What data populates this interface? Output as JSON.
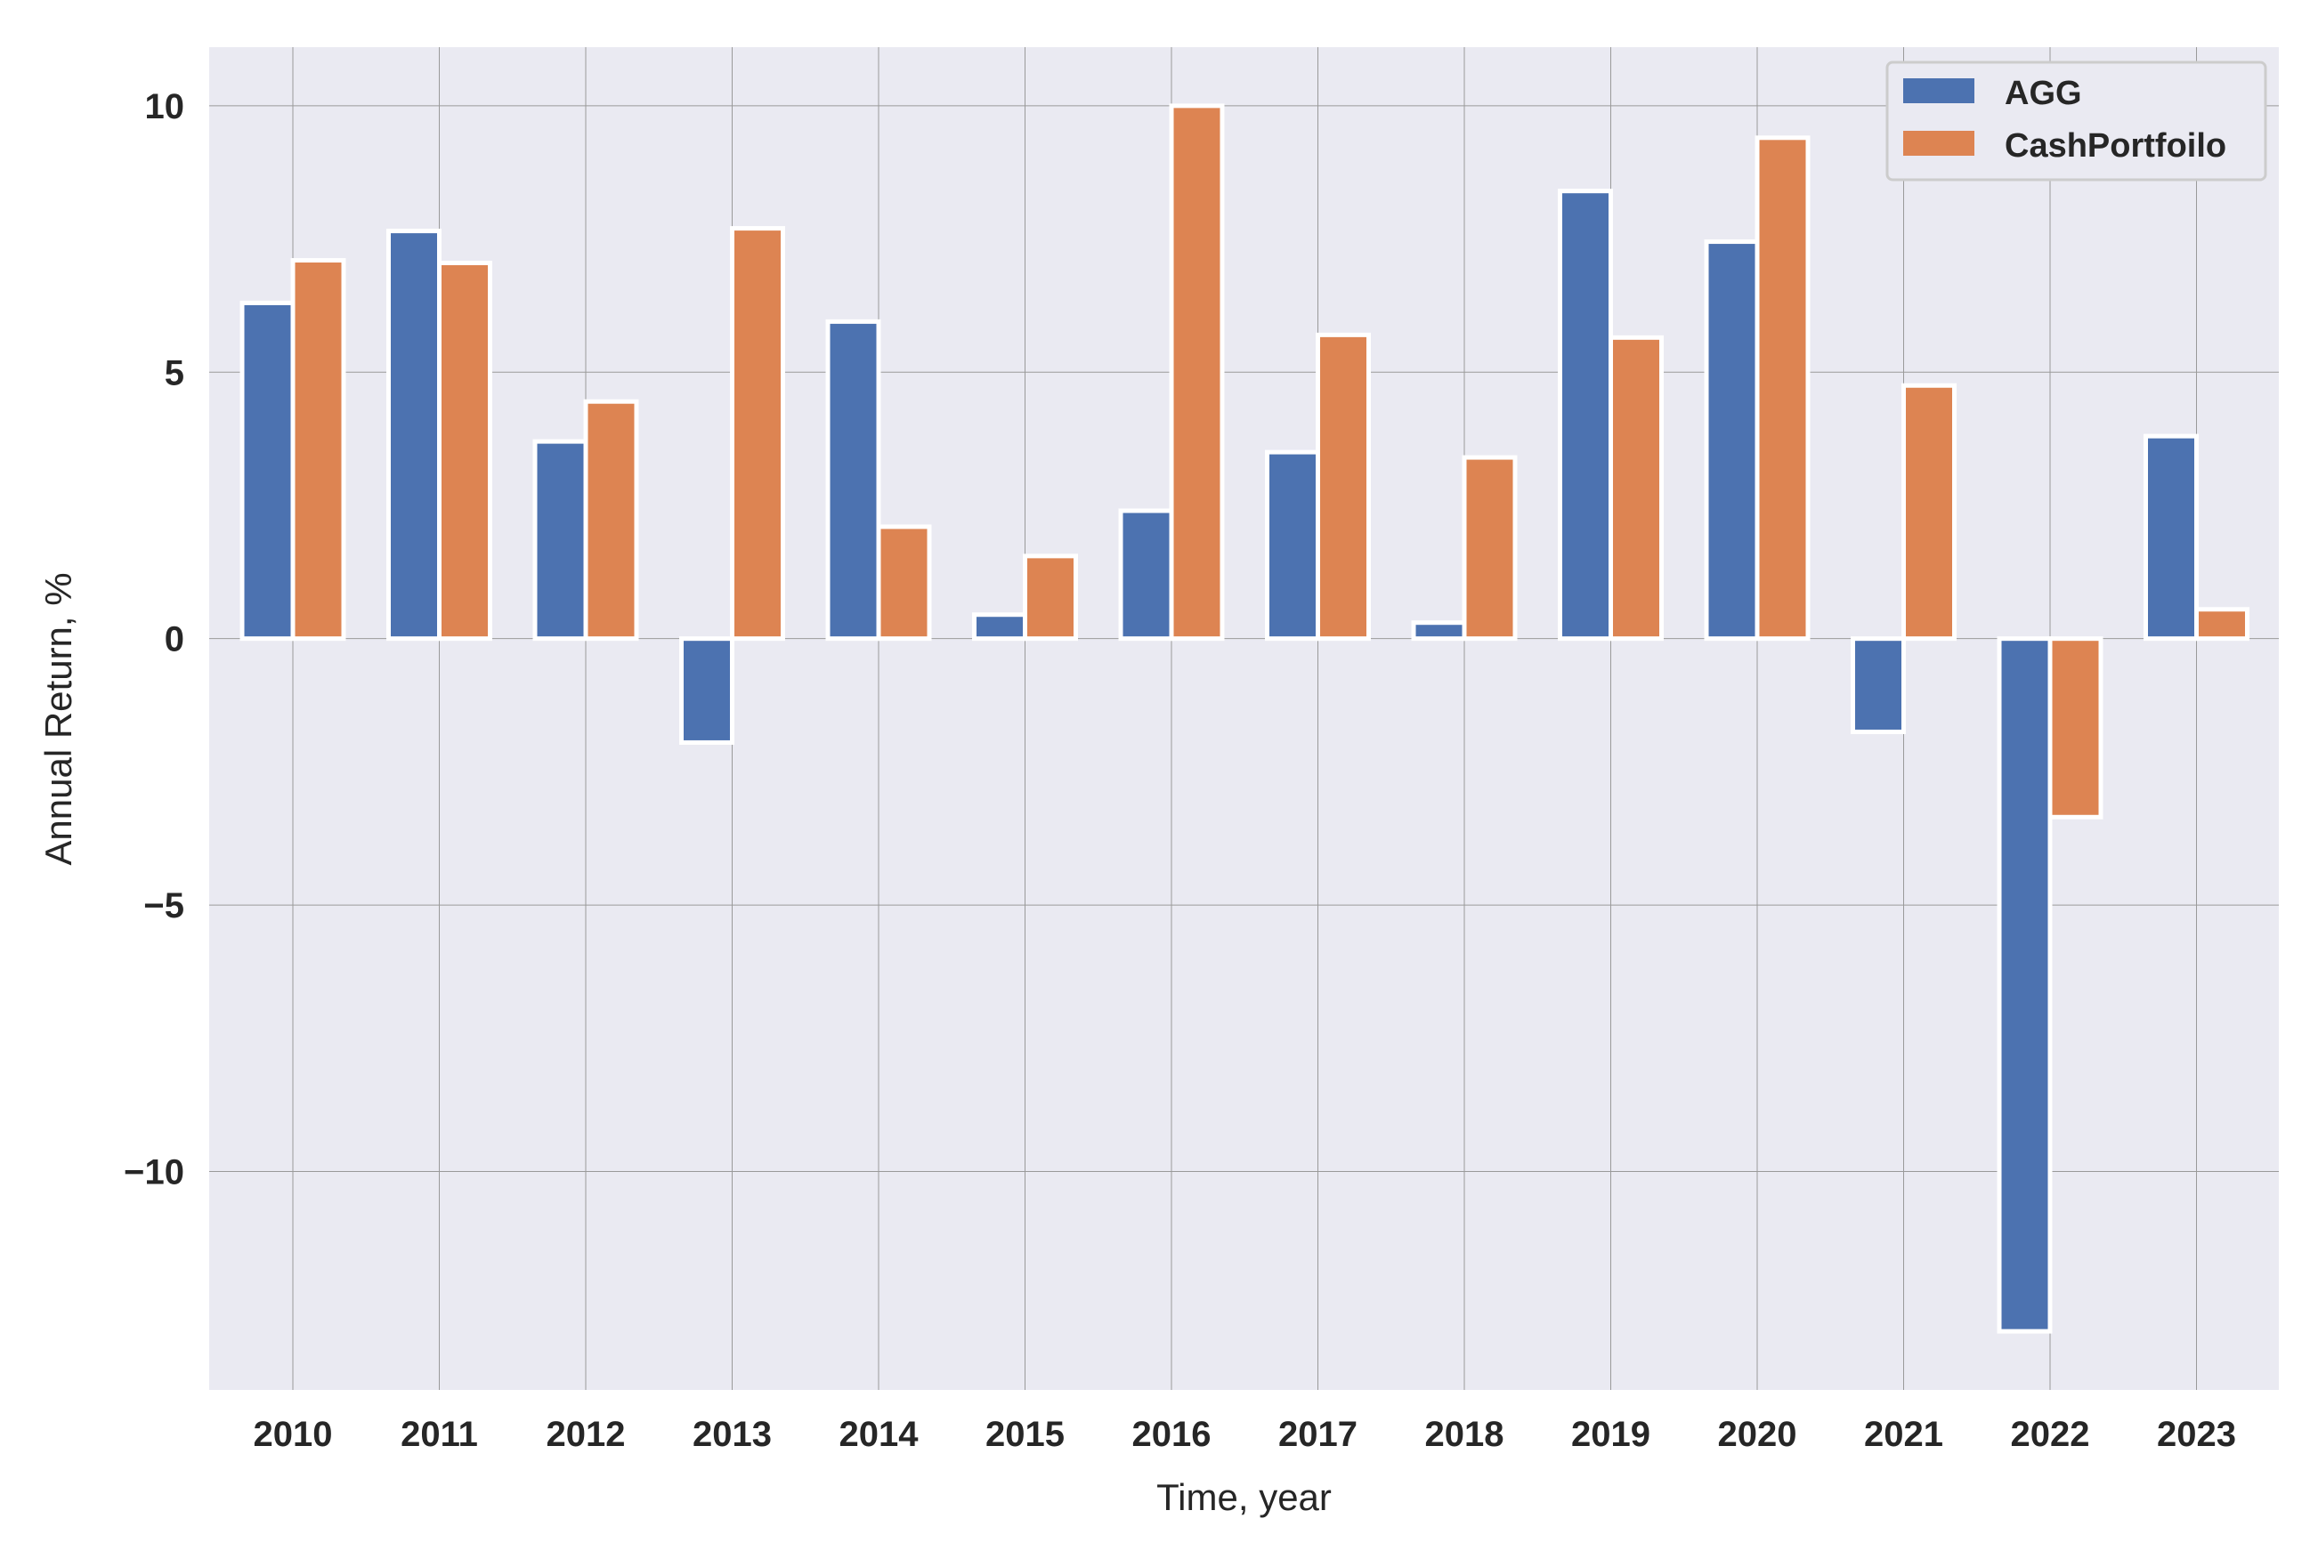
{
  "chart_data": {
    "type": "bar",
    "xlabel": "Time, year",
    "ylabel": "Annual Return, %",
    "categories": [
      "2010",
      "2011",
      "2012",
      "2013",
      "2014",
      "2015",
      "2016",
      "2017",
      "2018",
      "2019",
      "2020",
      "2021",
      "2022",
      "2023"
    ],
    "series": [
      {
        "name": "AGG",
        "color": "#4c72b0",
        "values": [
          6.3,
          7.65,
          3.7,
          -1.95,
          5.95,
          0.45,
          2.4,
          3.5,
          0.3,
          8.4,
          7.45,
          -1.75,
          -13.0,
          3.8
        ]
      },
      {
        "name": "CashPortfoilo",
        "color": "#dd8452",
        "values": [
          7.1,
          7.05,
          4.45,
          7.7,
          2.1,
          1.55,
          10.0,
          5.7,
          3.4,
          5.65,
          9.4,
          4.75,
          -3.35,
          0.55
        ]
      }
    ],
    "yticks": [
      -10,
      -5,
      0,
      5,
      10
    ],
    "ytick_labels": [
      "−10",
      "−5",
      "0",
      "5",
      "10"
    ],
    "ylim": [
      -14.1,
      11.1
    ],
    "grid": true,
    "legend_position": "top-right",
    "plot_background": "#eaeaf2",
    "grid_color": "#9a9a9a"
  }
}
